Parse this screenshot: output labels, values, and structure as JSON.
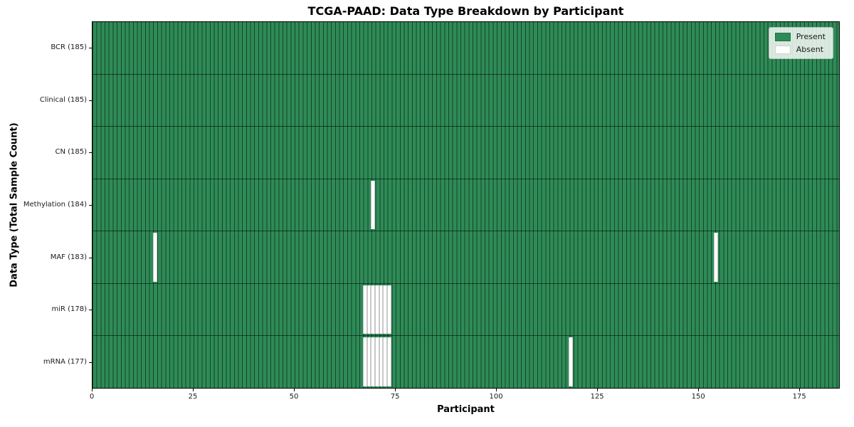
{
  "chart_data": {
    "type": "heatmap",
    "title": "TCGA-PAAD: Data Type Breakdown by Participant",
    "xlabel": "Participant",
    "ylabel": "Data Type (Total Sample Count)",
    "x_ticks": [
      0,
      25,
      50,
      75,
      100,
      125,
      150,
      175
    ],
    "xlim": [
      0,
      185
    ],
    "n_participants": 185,
    "grid": true,
    "rows": [
      {
        "label": "BCR (185)",
        "data_type": "BCR",
        "total_sample_count": 185,
        "absent_participants": []
      },
      {
        "label": "Clinical (185)",
        "data_type": "Clinical",
        "total_sample_count": 185,
        "absent_participants": []
      },
      {
        "label": "CN (185)",
        "data_type": "CN",
        "total_sample_count": 185,
        "absent_participants": []
      },
      {
        "label": "Methylation (184)",
        "data_type": "Methylation",
        "total_sample_count": 184,
        "absent_participants": [
          69
        ]
      },
      {
        "label": "MAF (183)",
        "data_type": "MAF",
        "total_sample_count": 183,
        "absent_participants": [
          15,
          154
        ]
      },
      {
        "label": "miR (178)",
        "data_type": "miR",
        "total_sample_count": 178,
        "absent_participants": [
          67,
          68,
          69,
          70,
          71,
          72,
          73
        ]
      },
      {
        "label": "mRNA (177)",
        "data_type": "mRNA",
        "total_sample_count": 177,
        "absent_participants": [
          67,
          68,
          69,
          70,
          71,
          72,
          73,
          118
        ]
      }
    ],
    "legend": {
      "position": "upper right",
      "entries": [
        {
          "label": "Present",
          "color": "#2e8b57"
        },
        {
          "label": "Absent",
          "color": "#ffffff"
        }
      ]
    },
    "colors": {
      "present": "#2e8b57",
      "absent": "#ffffff",
      "grid_on_green": "#1c4a31",
      "grid_on_white": "#c8c8c8",
      "frame": "#000000"
    }
  }
}
